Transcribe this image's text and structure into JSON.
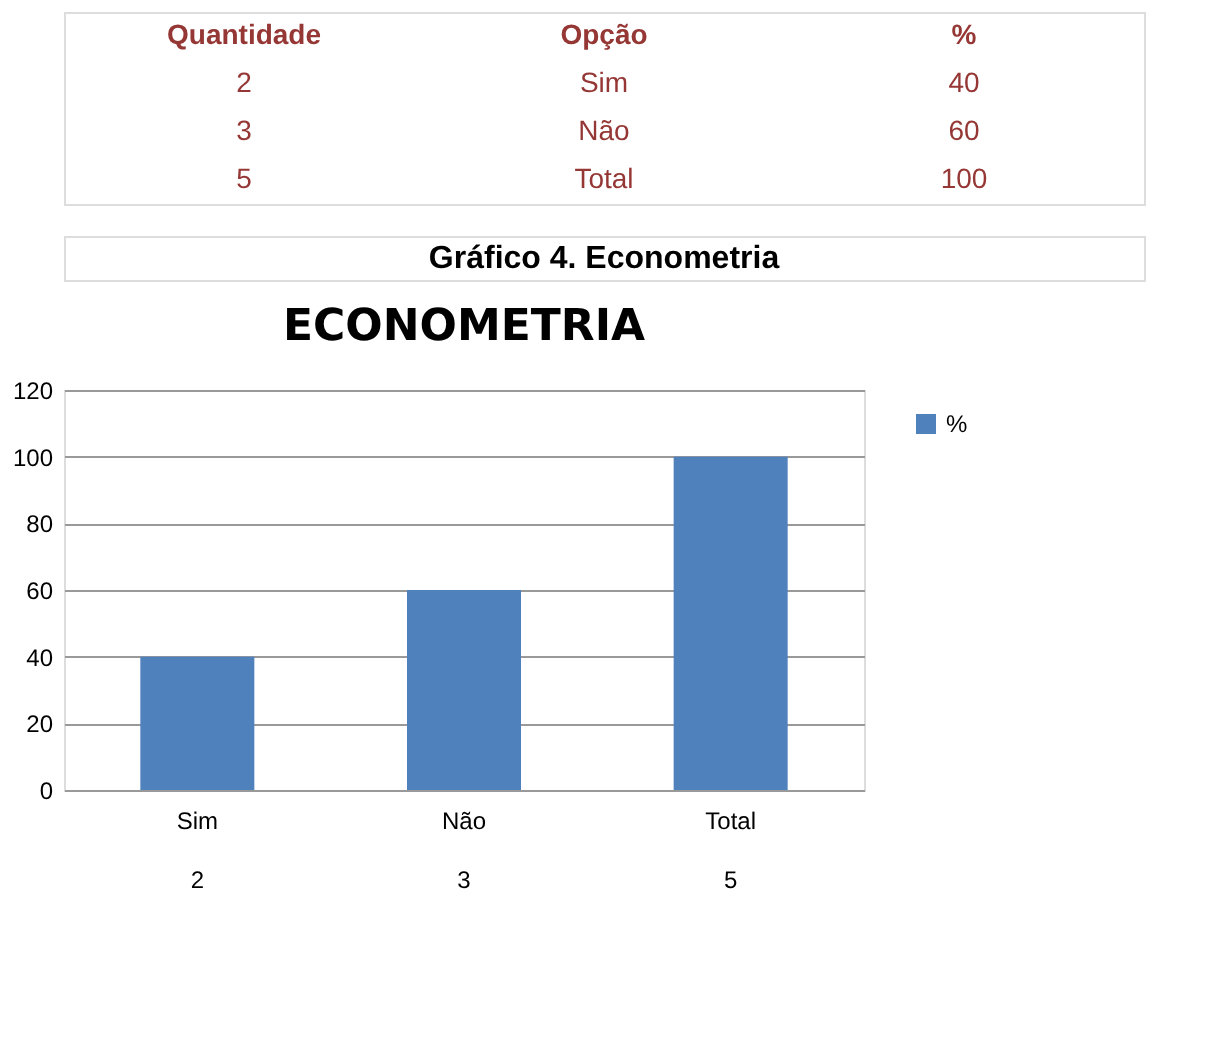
{
  "chart_data": [
    {
      "type": "other",
      "annotations": [
        "Quantidade",
        "Opção",
        "%",
        "2",
        "Sim",
        "40",
        "3",
        "Não",
        "60",
        "5",
        "Total",
        "100"
      ]
    },
    {
      "type": "bar",
      "title": "ECONOMETRIA",
      "categories": [
        "Sim",
        "Não",
        "Total"
      ],
      "series": [
        {
          "name": "%",
          "color": "#4f81bd",
          "values": [
            40,
            60,
            100
          ]
        }
      ],
      "ylim": [
        0,
        120
      ],
      "yticks": [
        0,
        20,
        40,
        60,
        80,
        100,
        120
      ],
      "grid": "y",
      "legend": "right",
      "annotations": [
        "Gráfico 4. Econometria",
        "2",
        "3",
        "5"
      ]
    }
  ]
}
